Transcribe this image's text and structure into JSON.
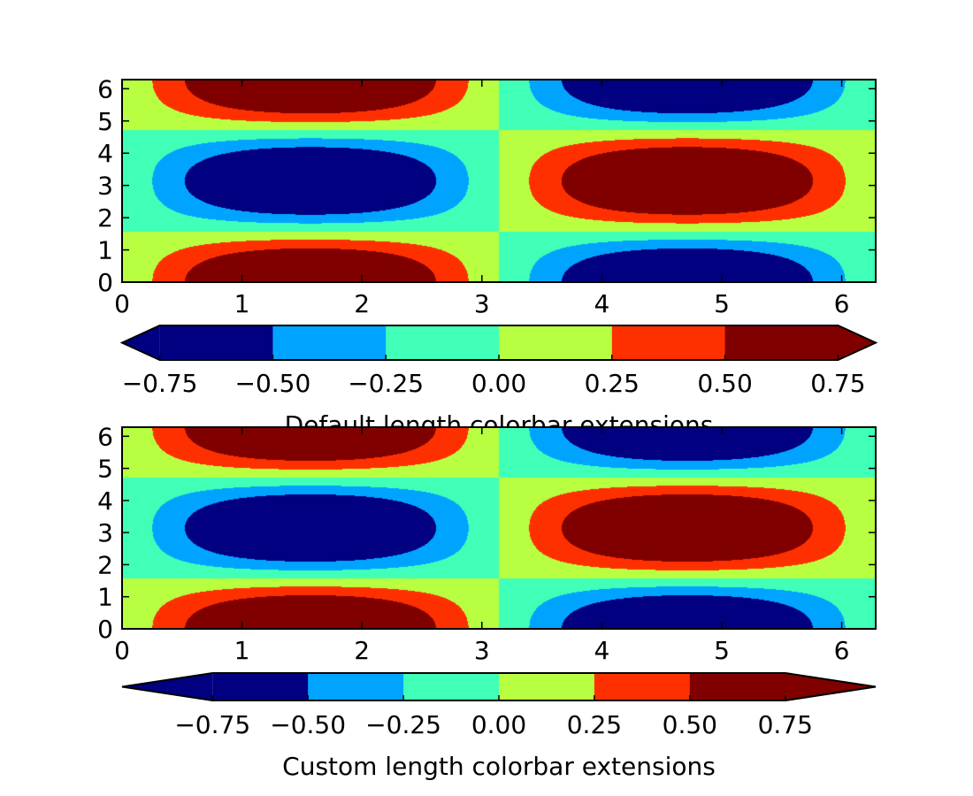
{
  "chart_data": [
    {
      "type": "heatmap",
      "subtype": "filled-contour",
      "function": "sin(x) * cos(y)",
      "title": "",
      "xlabel": "",
      "ylabel": "",
      "xlim": [
        0,
        6.2832
      ],
      "ylim": [
        0,
        6.2832
      ],
      "xticks": [
        "0",
        "1",
        "2",
        "3",
        "4",
        "5",
        "6"
      ],
      "yticks": [
        "0",
        "1",
        "2",
        "3",
        "4",
        "5",
        "6"
      ],
      "levels": [
        -0.75,
        -0.5,
        -0.25,
        0.0,
        0.25,
        0.5,
        0.75
      ],
      "level_colors": [
        "#000080",
        "#00a4ff",
        "#40ffb7",
        "#b7ff40",
        "#ff3000",
        "#800000"
      ],
      "extend": "both",
      "under_color": "#000080",
      "over_color": "#800000",
      "colorbar": {
        "orientation": "horizontal",
        "location": "below",
        "ticks": [
          "−0.75",
          "−0.50",
          "−0.25",
          "0.00",
          "0.25",
          "0.50",
          "0.75"
        ],
        "extension_length": "default",
        "label": "Default length colorbar extensions"
      }
    },
    {
      "type": "heatmap",
      "subtype": "filled-contour",
      "function": "sin(x) * cos(y)",
      "title": "",
      "xlabel": "",
      "ylabel": "",
      "xlim": [
        0,
        6.2832
      ],
      "ylim": [
        0,
        6.2832
      ],
      "xticks": [
        "0",
        "1",
        "2",
        "3",
        "4",
        "5",
        "6"
      ],
      "yticks": [
        "0",
        "1",
        "2",
        "3",
        "4",
        "5",
        "6"
      ],
      "levels": [
        -0.75,
        -0.5,
        -0.25,
        0.0,
        0.25,
        0.5,
        0.75
      ],
      "level_colors": [
        "#000080",
        "#00a4ff",
        "#40ffb7",
        "#b7ff40",
        "#ff3000",
        "#800000"
      ],
      "extend": "both",
      "under_color": "#000080",
      "over_color": "#800000",
      "colorbar": {
        "orientation": "horizontal",
        "location": "below",
        "ticks": [
          "−0.75",
          "−0.50",
          "−0.25",
          "0.00",
          "0.25",
          "0.50",
          "0.75"
        ],
        "extension_length": "custom",
        "label": "Custom length colorbar extensions"
      }
    }
  ]
}
